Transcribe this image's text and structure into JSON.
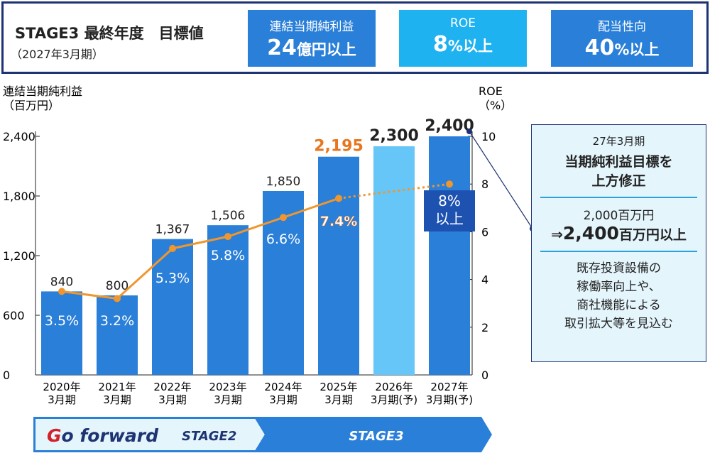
{
  "header": {
    "title": "STAGE3 最終年度　目標値",
    "subtitle": "（2027年3月期）",
    "cards": [
      {
        "label": "連結当期純利益",
        "value": "24",
        "unit": "億円以上",
        "color": "#2a7fd8"
      },
      {
        "label": "ROE",
        "value": "8",
        "unit": "%以上",
        "color": "#1fb2f0"
      },
      {
        "label": "配当性向",
        "value": "40",
        "unit": "%以上",
        "color": "#2a7fd8"
      }
    ]
  },
  "chart_data": {
    "type": "bar+line",
    "ylabel_left": "連結当期純利益\n（百万円）",
    "ylabel_left_lines": [
      "連結当期純利益",
      "（百万円）"
    ],
    "ylabel_right_lines": [
      "ROE",
      "（%）"
    ],
    "ylim_left": [
      0,
      2400
    ],
    "yticks_left": [
      "0",
      "600",
      "1,200",
      "1,800",
      "2,400"
    ],
    "ylim_right": [
      0,
      10
    ],
    "yticks_right": [
      "0",
      "2",
      "4",
      "6",
      "8",
      "10"
    ],
    "categories": [
      [
        "2020年",
        "3月期"
      ],
      [
        "2021年",
        "3月期"
      ],
      [
        "2022年",
        "3月期"
      ],
      [
        "2023年",
        "3月期"
      ],
      [
        "2024年",
        "3月期"
      ],
      [
        "2025年",
        "3月期"
      ],
      [
        "2026年",
        "3月期(予)"
      ],
      [
        "2027年",
        "3月期(予)"
      ]
    ],
    "series": [
      {
        "type": "bar",
        "values": [
          840,
          800,
          1367,
          1506,
          1850,
          2195,
          2300,
          2400
        ],
        "labels": [
          "840",
          "800",
          "1,367",
          "1,506",
          "1,850",
          "2,195",
          "2,300",
          "2,400"
        ]
      },
      {
        "type": "line",
        "values": [
          3.5,
          3.2,
          5.3,
          5.8,
          6.6,
          7.4,
          null,
          8
        ],
        "labels": [
          "3.5%",
          "3.2%",
          "5.3%",
          "5.8%",
          "6.6%",
          "7.4%",
          "",
          "8%\n以上"
        ]
      }
    ],
    "colors": {
      "bar": "#2a7fd8",
      "bar_forecast": "#66c6f7",
      "line": "#f0962e",
      "highlight": "#e8761e",
      "target_box": "#1d52b0"
    },
    "target_label_lines": [
      "8%",
      "以上"
    ]
  },
  "callout": {
    "line1": "27年3月期",
    "line2": "当期純利益目標を",
    "line3": "上方修正",
    "line4": "2,000百万円",
    "line5a": "⇒",
    "line5b": "2,400",
    "line5c": "百万円以上",
    "body": [
      "既存投資設備の",
      "稼働率向上や、",
      "商社機能による",
      "取引拡大等を見込む"
    ]
  },
  "footer": {
    "logo": "Go forward",
    "stage2": "STAGE2",
    "stage3": "STAGE3"
  }
}
